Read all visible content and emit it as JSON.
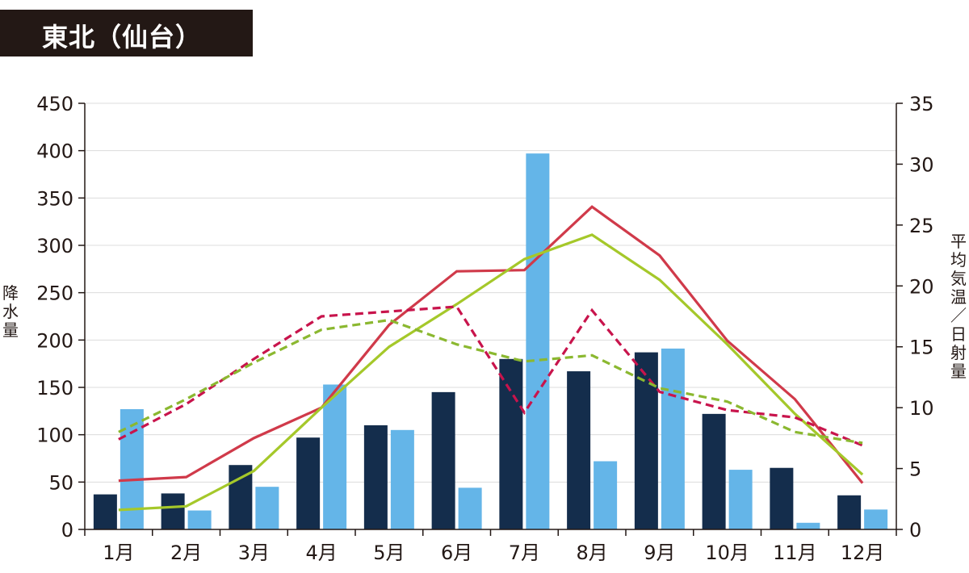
{
  "title": "東北（仙台）",
  "chart_data": {
    "type": "bar",
    "categories": [
      "1月",
      "2月",
      "3月",
      "4月",
      "5月",
      "6月",
      "7月",
      "8月",
      "9月",
      "10月",
      "11月",
      "12月"
    ],
    "ylabel_left": "降水量",
    "ylabel_right": "平均気温 / 日射量",
    "ylim_left": [
      0,
      450
    ],
    "yticks_left": [
      0,
      50,
      100,
      150,
      200,
      250,
      300,
      350,
      400,
      450
    ],
    "ylim_right": [
      0,
      35
    ],
    "yticks_right": [
      0,
      5,
      10,
      15,
      20,
      25,
      30,
      35
    ],
    "grid": true,
    "bar_series": [
      {
        "color": "#142d4c",
        "axis": "left",
        "values": [
          37,
          38,
          68,
          97,
          110,
          145,
          180,
          167,
          187,
          122,
          65,
          36
        ]
      },
      {
        "color": "#64b5e8",
        "axis": "left",
        "values": [
          127,
          20,
          45,
          153,
          105,
          44,
          397,
          72,
          191,
          63,
          7,
          21
        ]
      }
    ],
    "line_series": [
      {
        "color": "#d03a4a",
        "dash": false,
        "axis": "right",
        "values": [
          4.0,
          4.3,
          7.5,
          10.0,
          16.8,
          21.2,
          21.3,
          26.5,
          22.5,
          15.5,
          10.7,
          3.8
        ]
      },
      {
        "color": "#a5c82a",
        "dash": false,
        "axis": "right",
        "values": [
          1.6,
          1.9,
          4.8,
          10.0,
          15.0,
          18.5,
          22.2,
          24.2,
          20.5,
          15.2,
          9.5,
          4.5
        ]
      },
      {
        "color": "#c8144c",
        "dash": true,
        "axis": "right",
        "values": [
          7.4,
          10.3,
          14.0,
          17.5,
          17.9,
          18.3,
          9.6,
          18.0,
          11.3,
          9.8,
          9.2,
          6.9
        ]
      },
      {
        "color": "#8bb830",
        "dash": true,
        "axis": "right",
        "values": [
          8.0,
          10.7,
          13.7,
          16.4,
          17.2,
          15.2,
          13.8,
          14.3,
          11.6,
          10.5,
          8.0,
          7.1
        ]
      }
    ]
  }
}
